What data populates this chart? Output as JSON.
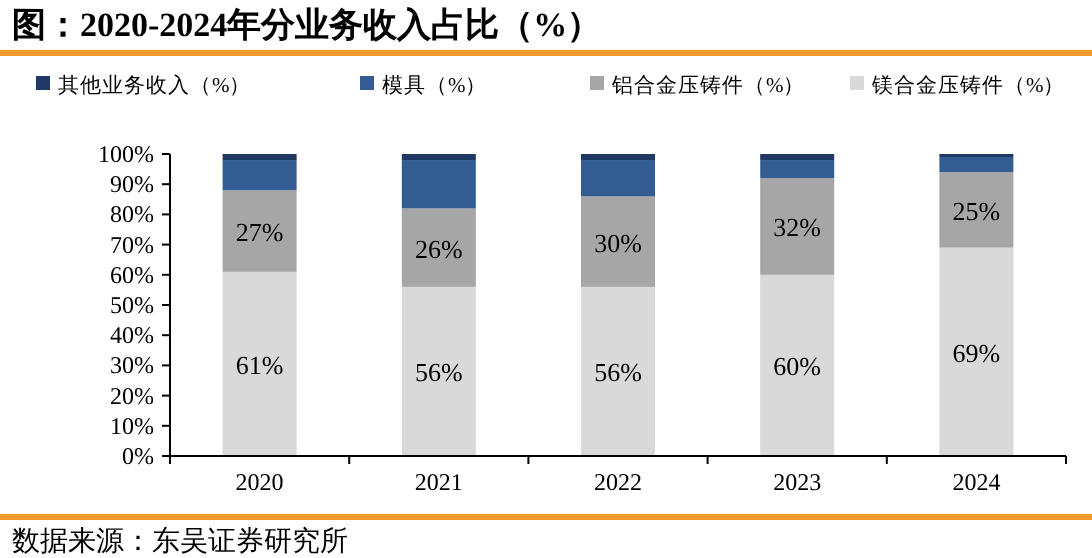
{
  "chart_data": {
    "type": "bar",
    "stacked": true,
    "title": "图：2020-2024年分业务收入占比（%）",
    "categories": [
      "2020",
      "2021",
      "2022",
      "2023",
      "2024"
    ],
    "series": [
      {
        "name": "镁合金压铸件（%）",
        "color": "#d9d9d9",
        "values": [
          61,
          56,
          56,
          60,
          69
        ],
        "value_labels": [
          "61%",
          "56%",
          "56%",
          "60%",
          "69%"
        ]
      },
      {
        "name": "铝合金压铸件（%）",
        "color": "#a6a6a6",
        "values": [
          27,
          26,
          30,
          32,
          25
        ],
        "value_labels": [
          "27%",
          "26%",
          "30%",
          "32%",
          "25%"
        ]
      },
      {
        "name": "模具（%）",
        "color": "#335d92",
        "values": [
          10,
          16,
          12,
          6,
          5
        ]
      },
      {
        "name": "其他业务收入（%）",
        "color": "#1f3864",
        "values": [
          2,
          2,
          2,
          2,
          1
        ]
      }
    ],
    "ylim": [
      0,
      100
    ],
    "yticks": [
      {
        "value": 0,
        "label": "0%"
      },
      {
        "value": 10,
        "label": "10%"
      },
      {
        "value": 20,
        "label": "20%"
      },
      {
        "value": 30,
        "label": "30%"
      },
      {
        "value": 40,
        "label": "40%"
      },
      {
        "value": 50,
        "label": "50%"
      },
      {
        "value": 60,
        "label": "60%"
      },
      {
        "value": 70,
        "label": "70%"
      },
      {
        "value": 80,
        "label": "80%"
      },
      {
        "value": 90,
        "label": "90%"
      },
      {
        "value": 100,
        "label": "100%"
      }
    ],
    "grid": false,
    "legend": "top",
    "annotations": [
      "数据来源：东吴证券研究所"
    ]
  }
}
